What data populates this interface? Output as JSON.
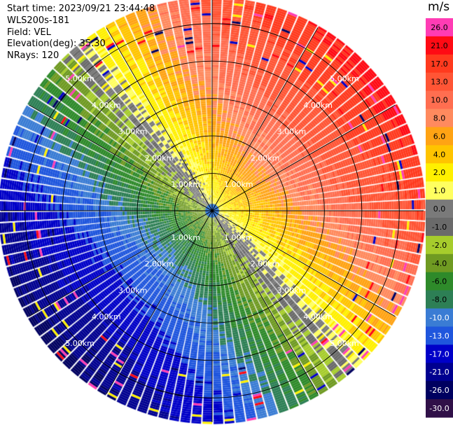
{
  "info": {
    "start_time": "Start time: 2023/09/21 23:44:48",
    "device": "WLS200s-181",
    "field": "Field: VEL",
    "elevation": "Elevation(deg): 35.30",
    "nrays": "NRays: 120"
  },
  "colorbar": {
    "unit": "m/s",
    "labels": [
      "26.0",
      "21.0",
      "17.0",
      "13.0",
      "10.0",
      "8.0",
      "6.0",
      "4.0",
      "2.0",
      "1.0",
      "0.0",
      "-1.0",
      "-2.0",
      "-4.0",
      "-6.0",
      "-8.0",
      "-10.0",
      "-13.0",
      "-17.0",
      "-21.0",
      "-26.0",
      "-30.0"
    ],
    "colors": [
      "#ff1493",
      "#ff0020",
      "#ff3a20",
      "#ff5a3c",
      "#ff7050",
      "#ff8a60",
      "#ffa010",
      "#ffc000",
      "#ffff00",
      "#ffff80",
      "#808080",
      "#606060",
      "#a0d030",
      "#6a9a20",
      "#209020",
      "#2a8050",
      "#3a7ad0",
      "#1a50e0",
      "#0000c8",
      "#000090",
      "#000060",
      "#301050"
    ]
  },
  "chart_data": {
    "type": "ppi",
    "field": "VEL",
    "units": "m/s",
    "rays": 120,
    "range_rings_km": [
      1.0,
      2.0,
      3.0,
      4.0,
      5.0
    ],
    "ring_labels": [
      "1.00km",
      "2.00km",
      "3.00km",
      "4.00km",
      "5.00km"
    ],
    "color_scale_ms": [
      26.0,
      21.0,
      17.0,
      13.0,
      10.0,
      8.0,
      6.0,
      4.0,
      2.0,
      1.0,
      0.0,
      -1.0,
      -2.0,
      -4.0,
      -6.0,
      -8.0,
      -10.0,
      -13.0,
      -17.0,
      -21.0,
      -26.0,
      -30.0
    ],
    "pattern": {
      "positive_sector": "north-east to east (approaching colors red/orange/yellow)",
      "negative_sector": "south-west to west (blue)",
      "near_zero_band": "gray ring around ~2 km and band north-west / south-east"
    }
  }
}
